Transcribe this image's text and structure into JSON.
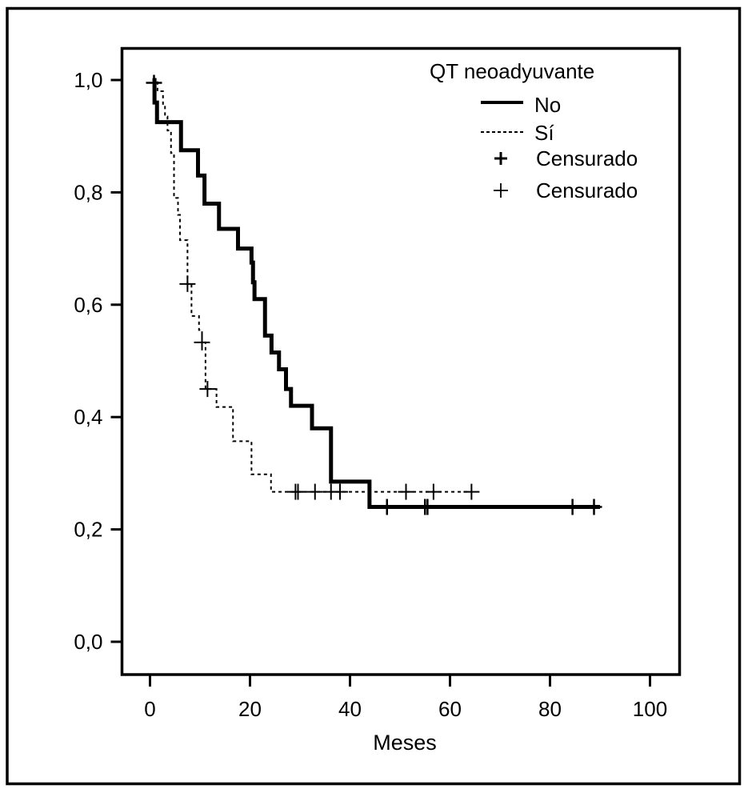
{
  "chart_data": {
    "type": "line",
    "subtype": "kaplan-meier-step",
    "title": "",
    "xlabel": "Meses",
    "ylabel": "",
    "xlim": [
      0,
      100
    ],
    "ylim": [
      0.0,
      1.0
    ],
    "x_ticks": [
      0,
      20,
      40,
      60,
      80,
      100
    ],
    "x_tick_labels": [
      "0",
      "20",
      "40",
      "60",
      "80",
      "100"
    ],
    "y_ticks": [
      0.0,
      0.2,
      0.4,
      0.6,
      0.8,
      1.0
    ],
    "y_tick_labels": [
      "0,0",
      "0,2",
      "0,4",
      "0,6",
      "0,8",
      "1,0"
    ],
    "grid": false,
    "legend": {
      "title": "QT neoadyuvante",
      "placement": "top-right",
      "entries": [
        {
          "label": "No",
          "style": "solid-thick"
        },
        {
          "label": "Sí",
          "style": "dotted"
        },
        {
          "label": "Censurado",
          "style": "plus-bold"
        },
        {
          "label": "Censurado",
          "style": "plus-thin"
        }
      ]
    },
    "series": [
      {
        "name": "No",
        "style": "solid-thick",
        "steps": [
          [
            0.5,
            1.0
          ],
          [
            0.9,
            0.96
          ],
          [
            1.4,
            0.925
          ],
          [
            6.2,
            0.875
          ],
          [
            9.6,
            0.83
          ],
          [
            10.9,
            0.78
          ],
          [
            13.8,
            0.735
          ],
          [
            17.6,
            0.7
          ],
          [
            20.3,
            0.675
          ],
          [
            20.6,
            0.64
          ],
          [
            20.9,
            0.61
          ],
          [
            23.0,
            0.545
          ],
          [
            24.3,
            0.515
          ],
          [
            25.8,
            0.485
          ],
          [
            27.2,
            0.45
          ],
          [
            28.2,
            0.42
          ],
          [
            32.4,
            0.38
          ],
          [
            36.2,
            0.285
          ],
          [
            43.9,
            0.24
          ],
          [
            90.0,
            0.24
          ]
        ],
        "censored": [
          [
            0.8,
            0.995
          ],
          [
            47.4,
            0.24
          ],
          [
            55.0,
            0.24
          ],
          [
            55.5,
            0.24
          ],
          [
            84.5,
            0.24
          ],
          [
            88.8,
            0.24
          ]
        ]
      },
      {
        "name": "Sí",
        "style": "dotted",
        "steps": [
          [
            0.5,
            1.0
          ],
          [
            1.5,
            0.98
          ],
          [
            2.6,
            0.955
          ],
          [
            3.0,
            0.935
          ],
          [
            3.5,
            0.91
          ],
          [
            4.2,
            0.87
          ],
          [
            4.8,
            0.79
          ],
          [
            5.6,
            0.76
          ],
          [
            6.0,
            0.715
          ],
          [
            7.5,
            0.637
          ],
          [
            8.3,
            0.58
          ],
          [
            9.8,
            0.555
          ],
          [
            10.4,
            0.533
          ],
          [
            11.1,
            0.45
          ],
          [
            13.3,
            0.418
          ],
          [
            16.6,
            0.357
          ],
          [
            20.3,
            0.298
          ],
          [
            24.2,
            0.267
          ],
          [
            64.3,
            0.267
          ]
        ],
        "censored": [
          [
            7.5,
            0.637
          ],
          [
            10.4,
            0.533
          ],
          [
            11.5,
            0.45
          ],
          [
            29.1,
            0.267
          ],
          [
            29.6,
            0.267
          ],
          [
            33.0,
            0.267
          ],
          [
            36.2,
            0.267
          ],
          [
            38.0,
            0.267
          ],
          [
            51.2,
            0.267
          ],
          [
            56.7,
            0.267
          ],
          [
            64.3,
            0.267
          ]
        ]
      }
    ]
  }
}
